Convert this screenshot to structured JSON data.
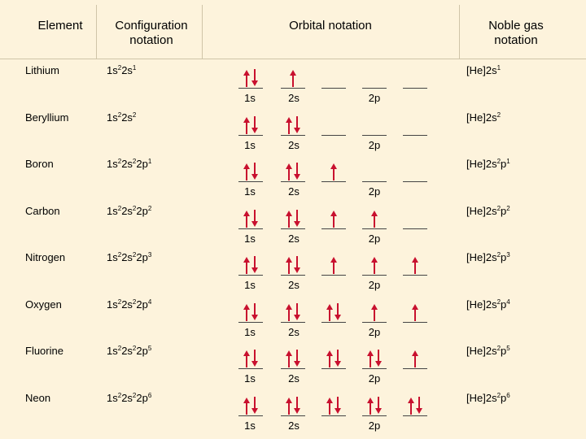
{
  "headers": {
    "element": "Element",
    "configuration": "Configuration notation",
    "orbital": "Orbital notation",
    "noble": "Noble gas notation"
  },
  "orbital_labels": {
    "s1": "1s",
    "s2": "2s",
    "p": "2p"
  },
  "rows": [
    {
      "element": "Lithium",
      "config": [
        [
          "1s",
          "2"
        ],
        [
          "2s",
          "1"
        ]
      ],
      "noble": [
        [
          "[He]2s",
          "1"
        ]
      ],
      "orbitals": [
        2,
        1,
        0,
        0,
        0
      ]
    },
    {
      "element": "Beryllium",
      "config": [
        [
          "1s",
          "2"
        ],
        [
          "2s",
          "2"
        ]
      ],
      "noble": [
        [
          "[He]2s",
          "2"
        ]
      ],
      "orbitals": [
        2,
        2,
        0,
        0,
        0
      ]
    },
    {
      "element": "Boron",
      "config": [
        [
          "1s",
          "2"
        ],
        [
          "2s",
          "2"
        ],
        [
          "2p",
          "1"
        ]
      ],
      "noble": [
        [
          "[He]2s",
          "2"
        ],
        [
          "p",
          "1"
        ]
      ],
      "orbitals": [
        2,
        2,
        1,
        0,
        0
      ]
    },
    {
      "element": "Carbon",
      "config": [
        [
          "1s",
          "2"
        ],
        [
          "2s",
          "2"
        ],
        [
          "2p",
          "2"
        ]
      ],
      "noble": [
        [
          "[He]2s",
          "2"
        ],
        [
          "p",
          "2"
        ]
      ],
      "orbitals": [
        2,
        2,
        1,
        1,
        0
      ]
    },
    {
      "element": "Nitrogen",
      "config": [
        [
          "1s",
          "2"
        ],
        [
          "2s",
          "2"
        ],
        [
          "2p",
          "3"
        ]
      ],
      "noble": [
        [
          "[He]2s",
          "2"
        ],
        [
          "p",
          "3"
        ]
      ],
      "orbitals": [
        2,
        2,
        1,
        1,
        1
      ]
    },
    {
      "element": "Oxygen",
      "config": [
        [
          "1s",
          "2"
        ],
        [
          "2s",
          "2"
        ],
        [
          "2p",
          "4"
        ]
      ],
      "noble": [
        [
          "[He]2s",
          "2"
        ],
        [
          "p",
          "4"
        ]
      ],
      "orbitals": [
        2,
        2,
        2,
        1,
        1
      ]
    },
    {
      "element": "Fluorine",
      "config": [
        [
          "1s",
          "2"
        ],
        [
          "2s",
          "2"
        ],
        [
          "2p",
          "5"
        ]
      ],
      "noble": [
        [
          "[He]2s",
          "2"
        ],
        [
          "p",
          "5"
        ]
      ],
      "orbitals": [
        2,
        2,
        2,
        2,
        1
      ]
    },
    {
      "element": "Neon",
      "config": [
        [
          "1s",
          "2"
        ],
        [
          "2s",
          "2"
        ],
        [
          "2p",
          "6"
        ]
      ],
      "noble": [
        [
          "[He]2s",
          "2"
        ],
        [
          "p",
          "6"
        ]
      ],
      "orbitals": [
        2,
        2,
        2,
        2,
        2
      ]
    }
  ],
  "colors": {
    "arrow": "#c8102e",
    "background": "#fdf3dc",
    "grid": "#cfc4a8"
  }
}
